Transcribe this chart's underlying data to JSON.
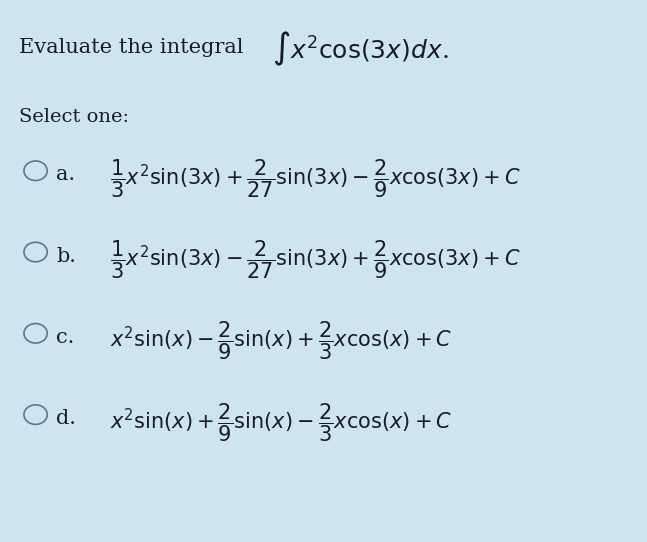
{
  "background_color": "#cce5f0",
  "title_text": "Evaluate the integral",
  "integral_expr": "$\\int x^{2} \\cos(3x)dx$.",
  "select_one": "Select one:",
  "options": [
    {
      "label": "a.",
      "formula": "$\\dfrac{1}{3}x^{2}\\sin(3x) + \\dfrac{2}{27}\\sin(3x) - \\dfrac{2}{9}x\\cos(3x) + C$"
    },
    {
      "label": "b.",
      "formula": "$\\dfrac{1}{3}x^{2}\\sin(3x) - \\dfrac{2}{27}\\sin(3x) + \\dfrac{2}{9}x\\cos(3x) + C$"
    },
    {
      "label": "c.",
      "formula": "$x^{2}\\sin(x) - \\dfrac{2}{9}\\sin(x) + \\dfrac{2}{3}x\\cos(x) + C$"
    },
    {
      "label": "d.",
      "formula": "$x^{2}\\sin(x) + \\dfrac{2}{9}\\sin(x) - \\dfrac{2}{3}x\\cos(x) + C$"
    }
  ],
  "text_color": "#1a1a2e",
  "circle_color": "#5a7a8a",
  "font_size_title": 15,
  "font_size_integral": 18,
  "font_size_select": 14,
  "font_size_option": 15
}
